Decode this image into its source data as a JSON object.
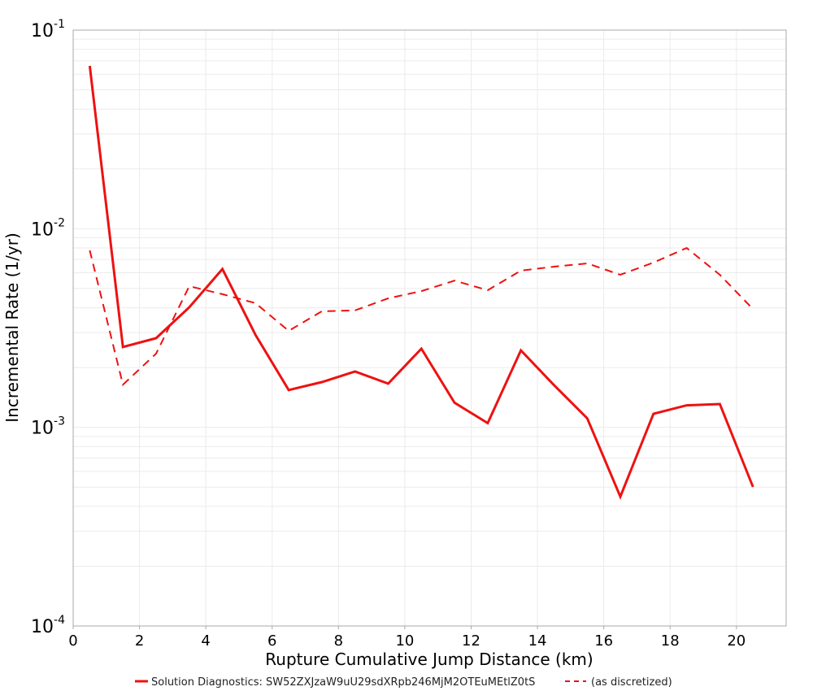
{
  "chart_data": {
    "type": "line",
    "title": "",
    "xlabel": "Rupture Cumulative Jump Distance (km)",
    "ylabel": "Incremental Rate (1/yr)",
    "xlim": [
      0,
      21.5
    ],
    "ylim": [
      0.0001,
      0.1
    ],
    "yscale": "log",
    "grid": true,
    "legend_position": "bottom",
    "x_ticks": [
      0,
      2,
      4,
      6,
      8,
      10,
      12,
      14,
      16,
      18,
      20
    ],
    "y_ticks": [
      {
        "value": 0.1,
        "base": "10",
        "exp": "-1"
      },
      {
        "value": 0.01,
        "base": "10",
        "exp": "-2"
      },
      {
        "value": 0.001,
        "base": "10",
        "exp": "-3"
      },
      {
        "value": 0.0001,
        "base": "10",
        "exp": "-4"
      }
    ],
    "x": [
      0.5,
      1.5,
      2.5,
      3.5,
      4.5,
      5.5,
      6.5,
      7.5,
      8.5,
      9.5,
      10.5,
      11.5,
      12.5,
      13.5,
      14.5,
      15.5,
      16.5,
      17.5,
      18.5,
      19.5,
      20.5
    ],
    "series": [
      {
        "name": "Solution Diagnostics: SW52ZXJzaW9uU29sdXRpb246MjM2OTEuMEtlZ0tS",
        "style": "solid",
        "color": "#ee1111",
        "values": [
          0.066,
          0.00254,
          0.00281,
          0.00402,
          0.00627,
          0.00292,
          0.00154,
          0.00169,
          0.00191,
          0.00166,
          0.00249,
          0.00133,
          0.00105,
          0.00244,
          0.00163,
          0.00111,
          0.000448,
          0.00117,
          0.00129,
          0.00131,
          0.000501
        ]
      },
      {
        "name": "(as discretized)",
        "style": "dashed",
        "color": "#ee1111",
        "values": [
          0.00778,
          0.00164,
          0.00235,
          0.00514,
          0.00468,
          0.00422,
          0.00306,
          0.00384,
          0.00388,
          0.00446,
          0.00485,
          0.00548,
          0.0049,
          0.00615,
          0.00644,
          0.00669,
          0.00586,
          0.00675,
          0.008,
          0.00586,
          0.00394
        ]
      }
    ]
  },
  "legend": {
    "items": [
      {
        "label": "Solution Diagnostics: SW52ZXJzaW9uU29sdXRpb246MjM2OTEuMEtlZ0tS",
        "style": "solid"
      },
      {
        "label": "(as discretized)",
        "style": "dashed"
      }
    ]
  },
  "colors": {
    "series": "#ee1111",
    "grid": "#ebebeb",
    "frame": "#a8a8a8"
  }
}
